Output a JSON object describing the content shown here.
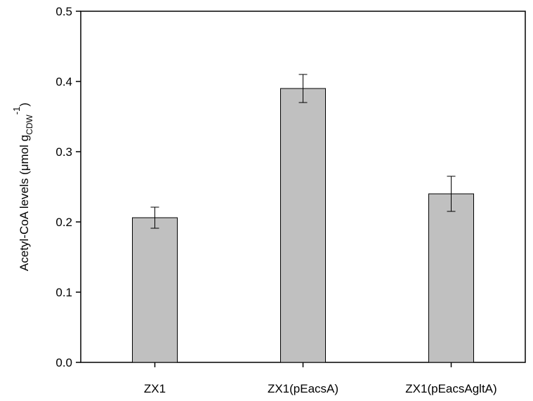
{
  "chart_data": {
    "type": "bar",
    "ylabel": {
      "text": "Acetyl-CoA levels (μmol g",
      "sub": "CDW",
      "sup": "-1",
      "end": ")"
    },
    "categories": [
      "ZX1",
      "ZX1(pEacsA)",
      "ZX1(pEacsAgltA)"
    ],
    "values": [
      0.206,
      0.39,
      0.24
    ],
    "errors": [
      0.015,
      0.02,
      0.025
    ],
    "color": "#c0c0c0",
    "ylim": [
      0,
      0.5
    ],
    "yticks": [
      {
        "value": 0,
        "label": "0.0"
      },
      0.1,
      0.2,
      0.3,
      0.4,
      0.5
    ]
  }
}
